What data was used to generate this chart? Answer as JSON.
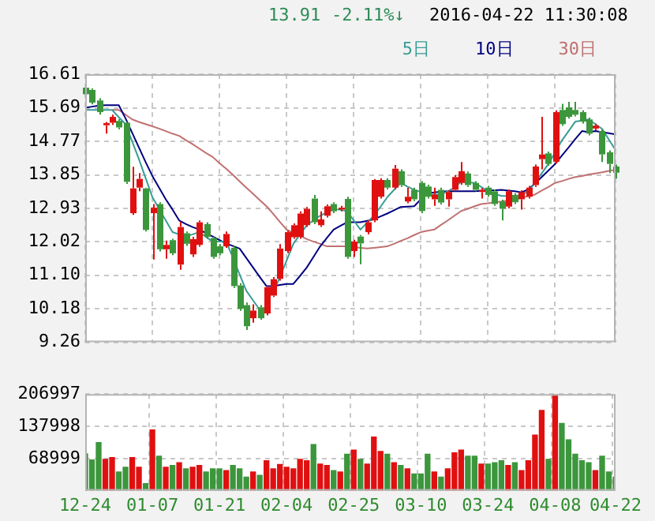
{
  "chart_data": [
    {
      "type": "candlestick",
      "annotations": [
        "13.91",
        "-2.11%↓",
        "2016-04-22 11:30:08"
      ],
      "categories": [
        null,
        null,
        null,
        null,
        null,
        null,
        null,
        null,
        null,
        null,
        null,
        null,
        null,
        null,
        null,
        null,
        null,
        null,
        null,
        null,
        null,
        null,
        null,
        null,
        null,
        null,
        null,
        null,
        null,
        null,
        null,
        null,
        null,
        null,
        null,
        null,
        null,
        null,
        null,
        null,
        null,
        null,
        null,
        null,
        null,
        null,
        null,
        null,
        null,
        null,
        null,
        null,
        null,
        null,
        null,
        null,
        null,
        null,
        null,
        null,
        null,
        null,
        null,
        null,
        null,
        null,
        null,
        null,
        null,
        null,
        null,
        null,
        null,
        null,
        null,
        null,
        null,
        null,
        null,
        null
      ],
      "ohlc": [
        [
          16.24,
          16.3,
          16.0,
          16.06
        ],
        [
          16.18,
          16.22,
          15.78,
          15.83
        ],
        [
          15.89,
          15.95,
          15.5,
          15.57
        ],
        [
          15.21,
          15.3,
          14.98,
          15.27
        ],
        [
          15.28,
          15.5,
          15.22,
          15.44
        ],
        [
          15.33,
          15.38,
          15.1,
          15.15
        ],
        [
          15.28,
          15.3,
          13.6,
          13.66
        ],
        [
          12.8,
          14.07,
          12.75,
          13.48
        ],
        [
          13.5,
          13.9,
          13.4,
          13.74
        ],
        [
          13.48,
          13.5,
          12.3,
          12.34
        ],
        [
          12.8,
          13.05,
          11.53,
          12.95
        ],
        [
          13.05,
          13.1,
          11.75,
          11.81
        ],
        [
          11.81,
          12.05,
          11.55,
          11.93
        ],
        [
          12.06,
          12.1,
          11.65,
          11.7
        ],
        [
          11.39,
          12.57,
          11.25,
          12.42
        ],
        [
          12.25,
          12.3,
          11.9,
          11.96
        ],
        [
          11.67,
          12.15,
          11.6,
          12.09
        ],
        [
          11.93,
          12.6,
          11.88,
          12.55
        ],
        [
          12.5,
          12.55,
          12.1,
          12.15
        ],
        [
          12.12,
          12.15,
          11.55,
          11.6
        ],
        [
          11.89,
          11.95,
          11.65,
          11.7
        ],
        [
          11.89,
          12.3,
          11.85,
          12.23
        ],
        [
          11.85,
          11.9,
          10.75,
          10.8
        ],
        [
          10.82,
          10.88,
          10.12,
          10.18
        ],
        [
          10.28,
          10.35,
          9.6,
          9.7
        ],
        [
          9.92,
          10.3,
          9.8,
          10.13
        ],
        [
          10.22,
          10.28,
          9.88,
          9.92
        ],
        [
          10.05,
          10.82,
          10.0,
          10.77
        ],
        [
          10.54,
          11.05,
          10.5,
          10.99
        ],
        [
          11.0,
          11.95,
          10.95,
          11.83
        ],
        [
          11.76,
          12.32,
          11.7,
          12.28
        ],
        [
          12.14,
          12.52,
          12.1,
          12.47
        ],
        [
          12.15,
          12.85,
          12.1,
          12.79
        ],
        [
          12.47,
          12.97,
          12.42,
          12.92
        ],
        [
          13.2,
          13.3,
          12.5,
          12.55
        ],
        [
          12.47,
          12.85,
          12.42,
          12.63
        ],
        [
          12.73,
          13.04,
          12.68,
          12.99
        ],
        [
          13.05,
          13.1,
          12.8,
          12.85
        ],
        [
          12.9,
          13.0,
          12.85,
          12.95
        ],
        [
          13.19,
          13.25,
          11.55,
          11.6
        ],
        [
          11.76,
          12.07,
          11.6,
          12.02
        ],
        [
          12.16,
          12.2,
          11.4,
          11.97
        ],
        [
          12.28,
          12.6,
          12.22,
          12.55
        ],
        [
          12.6,
          13.73,
          12.55,
          13.71
        ],
        [
          13.25,
          13.76,
          13.2,
          13.71
        ],
        [
          13.71,
          13.76,
          13.45,
          13.5
        ],
        [
          13.5,
          14.12,
          13.45,
          14.02
        ],
        [
          13.95,
          14.0,
          13.52,
          13.57
        ],
        [
          13.12,
          13.5,
          13.07,
          13.25
        ],
        [
          13.44,
          13.5,
          13.13,
          13.18
        ],
        [
          13.63,
          13.68,
          12.8,
          12.86
        ],
        [
          13.53,
          13.58,
          13.2,
          13.25
        ],
        [
          13.18,
          13.5,
          13.0,
          13.31
        ],
        [
          13.44,
          13.5,
          13.04,
          13.09
        ],
        [
          13.18,
          13.43,
          12.98,
          13.38
        ],
        [
          13.44,
          13.84,
          13.4,
          13.79
        ],
        [
          13.63,
          14.2,
          13.58,
          13.95
        ],
        [
          13.89,
          13.94,
          13.52,
          13.57
        ],
        [
          13.63,
          13.68,
          13.4,
          13.44
        ],
        [
          13.38,
          13.49,
          13.2,
          13.44
        ],
        [
          13.5,
          13.55,
          13.25,
          13.3
        ],
        [
          13.4,
          13.45,
          13.0,
          13.05
        ],
        [
          13.12,
          13.17,
          12.6,
          12.92
        ],
        [
          12.98,
          13.45,
          12.93,
          13.4
        ],
        [
          13.3,
          13.35,
          13.05,
          13.1
        ],
        [
          13.18,
          13.43,
          12.9,
          13.38
        ],
        [
          13.25,
          13.55,
          13.2,
          13.5
        ],
        [
          13.57,
          14.13,
          13.52,
          14.08
        ],
        [
          14.28,
          15.44,
          14.0,
          14.41
        ],
        [
          14.44,
          14.49,
          14.1,
          14.15
        ],
        [
          14.21,
          15.62,
          14.16,
          15.57
        ],
        [
          15.63,
          15.8,
          15.19,
          15.24
        ],
        [
          15.7,
          15.85,
          15.39,
          15.44
        ],
        [
          15.63,
          15.85,
          15.45,
          15.5
        ],
        [
          15.57,
          15.62,
          15.26,
          15.31
        ],
        [
          15.37,
          15.42,
          14.93,
          14.98
        ],
        [
          15.12,
          15.25,
          15.07,
          15.2
        ],
        [
          15.05,
          15.1,
          14.2,
          14.41
        ],
        [
          14.47,
          14.52,
          13.9,
          14.15
        ],
        [
          14.08,
          14.13,
          13.75,
          13.91
        ]
      ],
      "colors": [
        "#3c963c",
        "#3c963c",
        "#3c963c",
        "#e01010",
        "#e01010",
        "#3c963c",
        "#3c963c",
        "#e01010",
        "#e01010",
        "#3c963c",
        "#e01010",
        "#3c963c",
        "#e01010",
        "#3c963c",
        "#e01010",
        "#3c963c",
        "#e01010",
        "#e01010",
        "#3c963c",
        "#3c963c",
        "#3c963c",
        "#e01010",
        "#3c963c",
        "#3c963c",
        "#3c963c",
        "#e01010",
        "#3c963c",
        "#e01010",
        "#e01010",
        "#e01010",
        "#e01010",
        "#e01010",
        "#e01010",
        "#e01010",
        "#3c963c",
        "#e01010",
        "#e01010",
        "#3c963c",
        "#e01010",
        "#3c963c",
        "#e01010",
        "#3c963c",
        "#e01010",
        "#e01010",
        "#e01010",
        "#3c963c",
        "#e01010",
        "#3c963c",
        "#e01010",
        "#3c963c",
        "#3c963c",
        "#3c963c",
        "#e01010",
        "#3c963c",
        "#e01010",
        "#e01010",
        "#e01010",
        "#3c963c",
        "#3c963c",
        "#e01010",
        "#3c963c",
        "#3c963c",
        "#3c963c",
        "#e01010",
        "#3c963c",
        "#e01010",
        "#e01010",
        "#e01010",
        "#e01010",
        "#3c963c",
        "#e01010",
        "#3c963c",
        "#3c963c",
        "#3c963c",
        "#3c963c",
        "#3c963c",
        "#e01010",
        "#3c963c",
        "#3c963c",
        "#3c963c"
      ],
      "series": [
        {
          "name": "5日",
          "type": "line",
          "color": "#3a9c96",
          "values": [
            15.63,
            15.63,
            15.63,
            15.63,
            15.63,
            15.43,
            15.24,
            14.76,
            14.28,
            13.76,
            13.24,
            12.92,
            12.6,
            12.28,
            12.22,
            12.16,
            12.22,
            12.28,
            12.15,
            12.02,
            12.02,
            12.02,
            11.58,
            11.12,
            10.67,
            10.41,
            10.15,
            null,
            10.62,
            11.05,
            11.5,
            11.96,
            12.22,
            12.47,
            12.6,
            12.73,
            12.82,
            12.92,
            12.89,
            12.86,
            12.6,
            12.35,
            12.54,
            12.73,
            12.98,
            13.24,
            13.44,
            13.63,
            13.53,
            13.44,
            13.38,
            13.31,
            13.31,
            13.31,
            13.4,
            13.5,
            13.66,
            13.65,
            13.63,
            13.52,
            13.4,
            13.33,
            13.27,
            13.27,
            13.27,
            13.3,
            13.4,
            13.63,
            13.89,
            14.15,
            14.47,
            14.79,
            15.05,
            15.31,
            15.34,
            15.37,
            15.24,
            15.11,
            14.82,
            14.53
          ]
        },
        {
          "name": "10日",
          "type": "line",
          "color": "#000080",
          "values": [
            15.69,
            15.72,
            15.75,
            15.76,
            15.76,
            15.76,
            15.4,
            15.0,
            14.6,
            14.2,
            13.82,
            13.5,
            13.18,
            12.9,
            12.6,
            12.5,
            12.42,
            12.35,
            12.25,
            12.16,
            12.06,
            11.97,
            11.9,
            11.83,
            11.57,
            11.31,
            11.05,
            10.8,
            10.8,
            10.83,
            10.86,
            10.86,
            11.08,
            11.31,
            11.6,
            11.89,
            12.12,
            12.35,
            12.45,
            12.55,
            12.55,
            12.55,
            12.59,
            12.63,
            12.71,
            12.79,
            12.88,
            12.97,
            12.98,
            12.99,
            13.18,
            13.35,
            13.37,
            13.39,
            13.4,
            13.4,
            13.4,
            13.4,
            13.4,
            13.41,
            13.42,
            13.43,
            13.44,
            13.42,
            13.4,
            13.37,
            13.45,
            13.62,
            13.79,
            13.97,
            14.15,
            14.38,
            14.6,
            14.83,
            15.05,
            15.02,
            15.05,
            15.02,
            14.99,
            14.96
          ]
        },
        {
          "name": "30日",
          "type": "line",
          "color": "#c07070",
          "values": [
            null,
            null,
            null,
            null,
            15.63,
            15.63,
            15.5,
            15.37,
            15.3,
            15.24,
            15.18,
            15.12,
            15.05,
            14.98,
            14.92,
            14.8,
            14.69,
            14.57,
            14.45,
            14.34,
            14.17,
            14.02,
            13.85,
            13.67,
            13.5,
            13.33,
            13.16,
            12.99,
            12.78,
            12.56,
            12.35,
            12.26,
            12.18,
            12.09,
            12.02,
            11.96,
            11.89,
            11.89,
            11.89,
            11.89,
            11.87,
            11.85,
            11.83,
            11.85,
            11.87,
            11.89,
            11.96,
            12.04,
            12.11,
            12.2,
            12.28,
            12.32,
            12.35,
            12.48,
            12.6,
            12.73,
            12.86,
            12.92,
            12.99,
            13.05,
            13.07,
            13.1,
            13.12,
            13.15,
            13.19,
            13.22,
            13.27,
            13.31,
            13.42,
            13.52,
            13.63,
            13.68,
            13.74,
            13.79,
            13.82,
            13.86,
            13.89,
            13.92,
            13.96,
            13.99
          ]
        }
      ],
      "ylim": [
        9.26,
        16.61
      ],
      "yticks": [
        9.26,
        10.18,
        {
          "value": 11.1,
          "label": "11.10"
        },
        12.02,
        12.93,
        13.85,
        14.77,
        15.69,
        16.61
      ],
      "grid": true,
      "legend": "top right",
      "marker": "none"
    },
    {
      "type": "bar",
      "categories": [
        "12-24",
        null,
        null,
        null,
        null,
        null,
        null,
        null,
        null,
        null,
        "01-07",
        null,
        null,
        null,
        null,
        null,
        null,
        null,
        null,
        null,
        "01-21",
        null,
        null,
        null,
        null,
        null,
        null,
        null,
        null,
        null,
        "02-04",
        null,
        null,
        null,
        null,
        null,
        null,
        null,
        null,
        null,
        "02-25",
        null,
        null,
        null,
        null,
        null,
        null,
        null,
        null,
        null,
        "03-10",
        null,
        null,
        null,
        null,
        null,
        null,
        null,
        null,
        null,
        "03-24",
        null,
        null,
        null,
        null,
        null,
        null,
        null,
        null,
        null,
        "04-08",
        null,
        null,
        null,
        null,
        null,
        null,
        null,
        null,
        "04-22"
      ],
      "values": [
        79000,
        66000,
        103000,
        67000,
        71000,
        40000,
        50000,
        71000,
        50000,
        15000,
        130000,
        74000,
        50000,
        54000,
        60000,
        47000,
        50000,
        54000,
        40000,
        47000,
        47000,
        43000,
        54000,
        47000,
        29000,
        40000,
        33000,
        64000,
        47000,
        56000,
        50000,
        47000,
        67000,
        64000,
        99000,
        57000,
        54000,
        43000,
        40000,
        78000,
        87000,
        67000,
        57000,
        115000,
        84000,
        78000,
        60000,
        54000,
        47000,
        36000,
        36000,
        78000,
        40000,
        29000,
        47000,
        81000,
        87000,
        74000,
        74000,
        57000,
        57000,
        60000,
        64000,
        54000,
        60000,
        43000,
        64000,
        119000,
        172000,
        67000,
        206000,
        144000,
        109000,
        78000,
        64000,
        60000,
        43000,
        74000,
        40000,
        29000
      ],
      "colors": [
        "#3c963c",
        "#3c963c",
        "#3c963c",
        "#e01010",
        "#e01010",
        "#3c963c",
        "#3c963c",
        "#e01010",
        "#e01010",
        "#3c963c",
        "#e01010",
        "#3c963c",
        "#e01010",
        "#3c963c",
        "#e01010",
        "#3c963c",
        "#e01010",
        "#e01010",
        "#3c963c",
        "#3c963c",
        "#3c963c",
        "#e01010",
        "#3c963c",
        "#3c963c",
        "#3c963c",
        "#e01010",
        "#3c963c",
        "#e01010",
        "#e01010",
        "#e01010",
        "#e01010",
        "#e01010",
        "#e01010",
        "#e01010",
        "#3c963c",
        "#e01010",
        "#e01010",
        "#3c963c",
        "#e01010",
        "#3c963c",
        "#e01010",
        "#3c963c",
        "#e01010",
        "#e01010",
        "#e01010",
        "#3c963c",
        "#e01010",
        "#3c963c",
        "#e01010",
        "#3c963c",
        "#3c963c",
        "#3c963c",
        "#e01010",
        "#3c963c",
        "#e01010",
        "#e01010",
        "#e01010",
        "#3c963c",
        "#3c963c",
        "#e01010",
        "#3c963c",
        "#3c963c",
        "#3c963c",
        "#e01010",
        "#3c963c",
        "#e01010",
        "#e01010",
        "#e01010",
        "#e01010",
        "#3c963c",
        "#e01010",
        "#3c963c",
        "#3c963c",
        "#3c963c",
        "#3c963c",
        "#3c963c",
        "#e01010",
        "#3c963c",
        "#3c963c",
        "#3c963c"
      ],
      "ylim": [
        0,
        206997
      ],
      "yticks": [
        68999,
        137998,
        206997
      ],
      "grid": true
    }
  ]
}
